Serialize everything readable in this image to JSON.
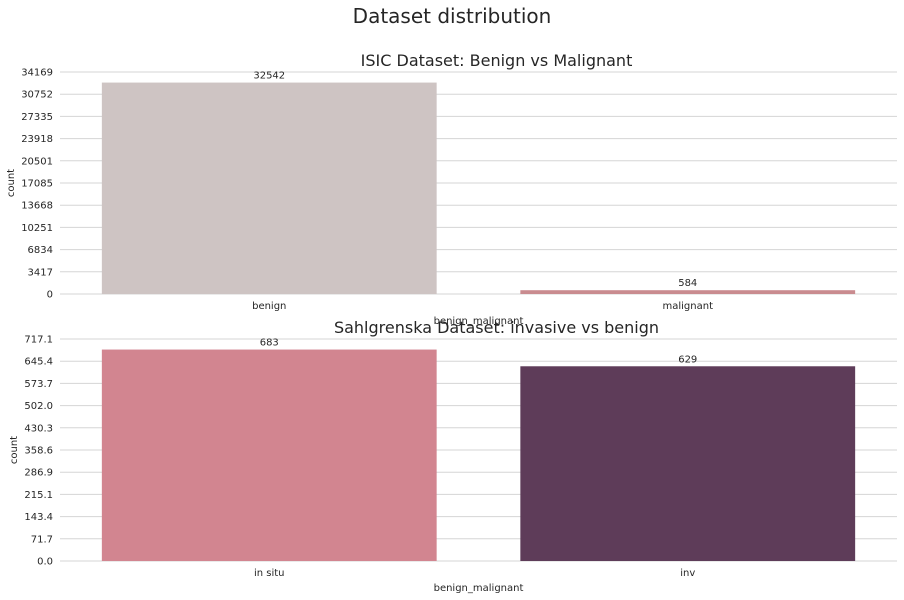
{
  "figure_title": "Dataset distribution",
  "chart_data": [
    {
      "type": "bar",
      "title": "ISIC Dataset: Benign vs Malignant",
      "xlabel": "benign_malignant",
      "ylabel": "count",
      "categories": [
        "benign",
        "malignant"
      ],
      "values": [
        32542,
        584
      ],
      "data_labels": [
        "32542",
        "584"
      ],
      "colors": [
        "#cec4c3",
        "#c98b8f"
      ],
      "yticks": [
        "0",
        "3417",
        "6834",
        "10251",
        "13668",
        "17085",
        "20501",
        "23918",
        "27335",
        "30752",
        "34169"
      ],
      "ylim": [
        0,
        34169
      ],
      "grid": "horizontal"
    },
    {
      "type": "bar",
      "title": "Sahlgrenska Dataset: invasive vs benign",
      "xlabel": "benign_malignant",
      "ylabel": "count",
      "categories": [
        "in situ",
        "inv"
      ],
      "values": [
        683,
        629
      ],
      "data_labels": [
        "683",
        "629"
      ],
      "colors": [
        "#d28590",
        "#5e3c59"
      ],
      "yticks": [
        "0.0",
        "71.7",
        "143.4",
        "215.1",
        "286.9",
        "358.6",
        "430.3",
        "502.0",
        "573.7",
        "645.4",
        "717.1"
      ],
      "ylim": [
        0,
        717.1
      ],
      "grid": "horizontal"
    }
  ]
}
